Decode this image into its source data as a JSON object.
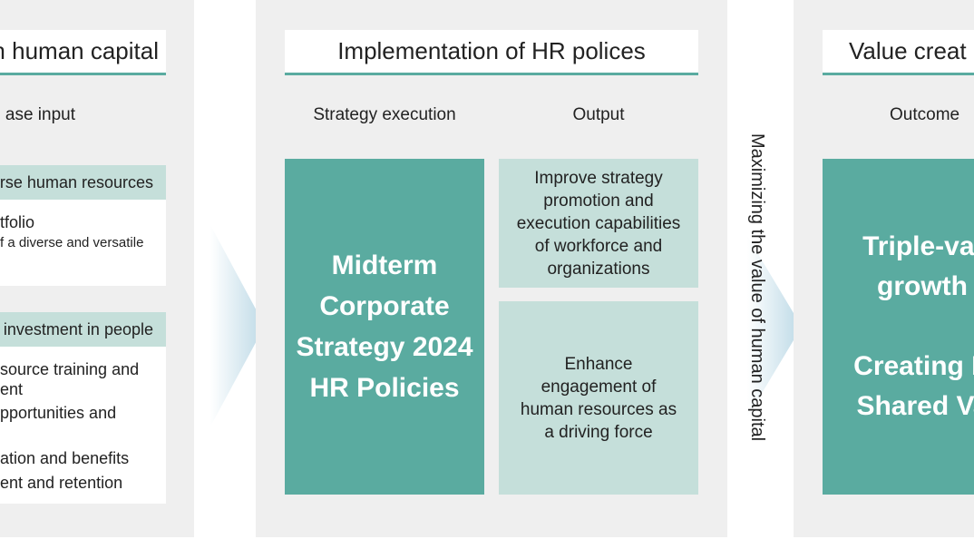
{
  "left": {
    "title": "t in human capital",
    "subtitle": "ase input",
    "section1": {
      "header": "erse human resources",
      "lines": [
        "tfolio",
        "f a diverse and versatile"
      ]
    },
    "section2": {
      "header": "investment in people",
      "lines": [
        "source training and",
        "ent",
        "pportunities and",
        "ation and benefits",
        "ent and retention"
      ]
    }
  },
  "middle": {
    "title": "Implementation of HR polices",
    "col1_label": "Strategy execution",
    "col2_label": "Output",
    "main_box": [
      "Midterm",
      "Corporate",
      "Strategy 2024",
      "HR Policies"
    ],
    "output1": [
      "Improve strategy",
      "promotion and",
      "execution capabilities",
      "of workforce and",
      "organizations"
    ],
    "output2": [
      "Enhance",
      "engagement of",
      "human resources as",
      "a driving force"
    ]
  },
  "vertical_label": "Maximizing the value of human capital",
  "right": {
    "title": "Value creat",
    "subtitle": "Outcome",
    "box": [
      "Triple-val",
      "growth",
      "",
      "Creating N",
      "Shared Va"
    ]
  },
  "colors": {
    "panel": "#efefef",
    "teal": "#5aaba0",
    "light_teal": "#c5dfda",
    "arrow": "#c8e0ea"
  }
}
